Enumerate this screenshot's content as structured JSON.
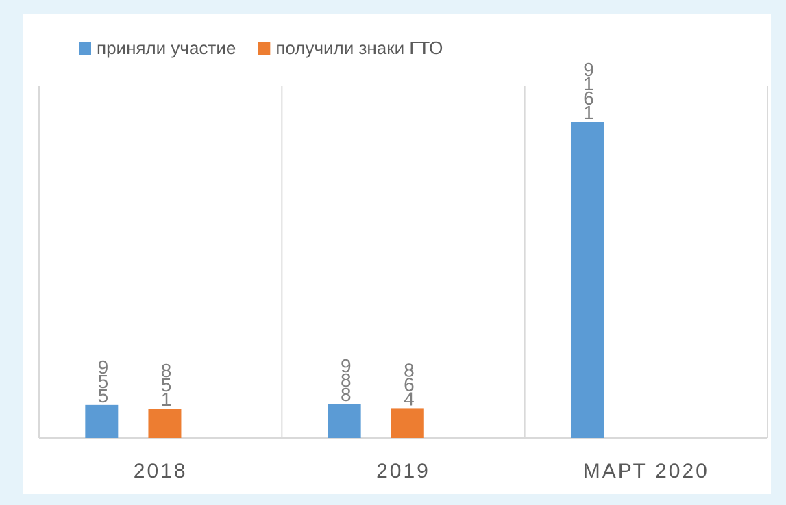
{
  "chart_data": {
    "type": "bar",
    "categories": [
      "2018",
      "2019",
      "МАРТ 2020"
    ],
    "series": [
      {
        "name": "приняли участие",
        "color": "#5b9bd5",
        "values": [
          955,
          988,
          9161
        ]
      },
      {
        "name": "получили знаки ГТО",
        "color": "#ed7d31",
        "values": [
          851,
          864,
          null
        ]
      }
    ],
    "grid": true,
    "legend": "top"
  }
}
